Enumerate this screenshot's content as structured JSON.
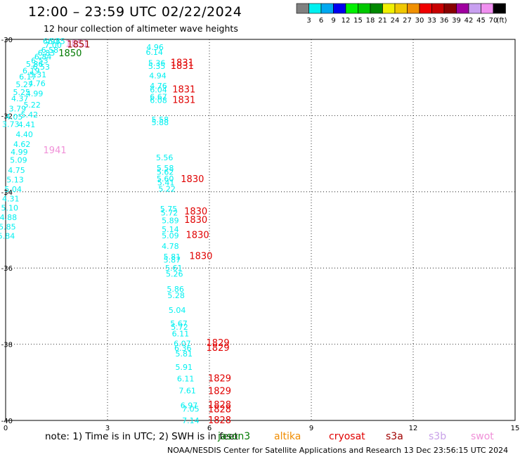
{
  "title": "12:00 – 23:59 UTC 02/22/2024",
  "subtitle": "12 hour collection of altimeter wave heights",
  "note": "note:  1) Time is in UTC; 2) SWH is in feet",
  "footer": "NOAA/NESDIS Center for Satellite Applications and Research    13 Dec 23:56:15 UTC 2024",
  "satellites": [
    {
      "name": "jason3",
      "color": "#007a00"
    },
    {
      "name": "altika",
      "color": "#f08c00"
    },
    {
      "name": "cryosat",
      "color": "#e00000"
    },
    {
      "name": "s3a",
      "color": "#a00000"
    },
    {
      "name": "s3b",
      "color": "#c8a0e8"
    },
    {
      "name": "swot",
      "color": "#f090d8"
    }
  ],
  "colorbar": {
    "labels": [
      "3",
      "6",
      "9",
      "12",
      "15",
      "18",
      "21",
      "24",
      "27",
      "30",
      "33",
      "36",
      "39",
      "42",
      "45",
      "70"
    ],
    "unit": "(ft)",
    "colors": [
      "#808080",
      "#00f0f0",
      "#00a8f0",
      "#0000f0",
      "#00f000",
      "#00c800",
      "#008800",
      "#f0f000",
      "#f0c800",
      "#f09000",
      "#f00000",
      "#c80000",
      "#880000",
      "#a000a0",
      "#c8a0f0",
      "#f090f0",
      "#000000"
    ]
  },
  "chart_data": {
    "type": "scatter",
    "title": "12:00 – 23:59 UTC 02/22/2024",
    "subtitle": "12 hour collection of altimeter wave heights",
    "xlim": [
      0,
      15
    ],
    "ylim": [
      -40,
      -30
    ],
    "x_ticks": [
      0,
      3,
      6,
      9,
      12,
      15
    ],
    "x_tick_labels": [
      "0",
      "3",
      "6",
      "9",
      "12",
      "15"
    ],
    "y_ticks": [
      -30,
      -32,
      -34,
      -36,
      -38,
      -40
    ],
    "y_tick_labels": [
      "-30",
      "-32",
      "-34",
      "-36",
      "-38",
      "-40"
    ],
    "grid": true,
    "swh_points": [
      {
        "x": 1.35,
        "y": -30.05,
        "v": "6.97"
      },
      {
        "x": 1.4,
        "y": -30.15,
        "v": "7.00"
      },
      {
        "x": 1.5,
        "y": -30.05,
        "v": "6.85"
      },
      {
        "x": 1.3,
        "y": -30.28,
        "v": "6.58"
      },
      {
        "x": 1.2,
        "y": -30.35,
        "v": "6.83"
      },
      {
        "x": 1.1,
        "y": -30.45,
        "v": "6.84"
      },
      {
        "x": 1.0,
        "y": -30.55,
        "v": "6.53"
      },
      {
        "x": 0.85,
        "y": -30.65,
        "v": "5.86"
      },
      {
        "x": 1.05,
        "y": -30.72,
        "v": "6.53"
      },
      {
        "x": 0.75,
        "y": -30.82,
        "v": "6.19"
      },
      {
        "x": 0.95,
        "y": -30.92,
        "v": "5.31"
      },
      {
        "x": 0.65,
        "y": -30.98,
        "v": "6.17"
      },
      {
        "x": 0.92,
        "y": -31.15,
        "v": "4.76"
      },
      {
        "x": 0.55,
        "y": -31.18,
        "v": "5.27"
      },
      {
        "x": 0.47,
        "y": -31.38,
        "v": "5.25"
      },
      {
        "x": 0.85,
        "y": -31.42,
        "v": "4.99"
      },
      {
        "x": 0.42,
        "y": -31.55,
        "v": "4.37"
      },
      {
        "x": 0.78,
        "y": -31.72,
        "v": "5.22"
      },
      {
        "x": 0.35,
        "y": -31.82,
        "v": "3.79"
      },
      {
        "x": 0.7,
        "y": -31.97,
        "v": "5.42"
      },
      {
        "x": 0.25,
        "y": -32.03,
        "v": "4.05"
      },
      {
        "x": 0.15,
        "y": -32.22,
        "v": "3.73"
      },
      {
        "x": 0.62,
        "y": -32.23,
        "v": "4.41"
      },
      {
        "x": 0.55,
        "y": -32.49,
        "v": "4.40"
      },
      {
        "x": 0.48,
        "y": -32.75,
        "v": "4.62"
      },
      {
        "x": 0.4,
        "y": -32.95,
        "v": "4.99"
      },
      {
        "x": 0.38,
        "y": -33.16,
        "v": "5.09"
      },
      {
        "x": 0.32,
        "y": -33.43,
        "v": "4.75"
      },
      {
        "x": 0.28,
        "y": -33.68,
        "v": "5.13"
      },
      {
        "x": 0.22,
        "y": -33.93,
        "v": "5.04"
      },
      {
        "x": 0.15,
        "y": -34.18,
        "v": "4.31"
      },
      {
        "x": 0.12,
        "y": -34.42,
        "v": "5.10"
      },
      {
        "x": 0.08,
        "y": -34.67,
        "v": "4.88"
      },
      {
        "x": 0.05,
        "y": -34.92,
        "v": "5.85"
      },
      {
        "x": 0.02,
        "y": -35.16,
        "v": "5.84"
      },
      {
        "x": 4.4,
        "y": -30.2,
        "v": "4.96"
      },
      {
        "x": 4.38,
        "y": -30.33,
        "v": "6.14"
      },
      {
        "x": 4.45,
        "y": -30.62,
        "v": "5.36"
      },
      {
        "x": 4.45,
        "y": -30.7,
        "v": "5.35"
      },
      {
        "x": 4.48,
        "y": -30.95,
        "v": "4.94"
      },
      {
        "x": 4.5,
        "y": -31.22,
        "v": "4.76"
      },
      {
        "x": 4.5,
        "y": -31.32,
        "v": "6.04"
      },
      {
        "x": 4.5,
        "y": -31.5,
        "v": "6.67"
      },
      {
        "x": 4.5,
        "y": -31.6,
        "v": "6.08"
      },
      {
        "x": 4.55,
        "y": -32.1,
        "v": "5.58"
      },
      {
        "x": 4.55,
        "y": -32.18,
        "v": "5.88"
      },
      {
        "x": 4.68,
        "y": -33.1,
        "v": "5.56"
      },
      {
        "x": 4.7,
        "y": -33.38,
        "v": "5.58"
      },
      {
        "x": 4.7,
        "y": -33.48,
        "v": "5.62"
      },
      {
        "x": 4.7,
        "y": -33.65,
        "v": "5.60"
      },
      {
        "x": 4.72,
        "y": -33.75,
        "v": "5.41"
      },
      {
        "x": 4.75,
        "y": -33.92,
        "v": "5.22"
      },
      {
        "x": 4.8,
        "y": -34.45,
        "v": "5.75"
      },
      {
        "x": 4.82,
        "y": -34.55,
        "v": "5.72"
      },
      {
        "x": 4.85,
        "y": -34.75,
        "v": "5.89"
      },
      {
        "x": 4.85,
        "y": -34.98,
        "v": "5.14"
      },
      {
        "x": 4.85,
        "y": -35.15,
        "v": "5.09"
      },
      {
        "x": 4.85,
        "y": -35.42,
        "v": "4.78"
      },
      {
        "x": 4.9,
        "y": -35.7,
        "v": "5.81"
      },
      {
        "x": 4.9,
        "y": -35.78,
        "v": "5.87"
      },
      {
        "x": 4.95,
        "y": -36.0,
        "v": "5.61"
      },
      {
        "x": 4.97,
        "y": -36.15,
        "v": "5.26"
      },
      {
        "x": 5.0,
        "y": -36.55,
        "v": "5.86"
      },
      {
        "x": 5.02,
        "y": -36.72,
        "v": "5.28"
      },
      {
        "x": 5.05,
        "y": -37.1,
        "v": "5.04"
      },
      {
        "x": 5.1,
        "y": -37.45,
        "v": "5.67"
      },
      {
        "x": 5.12,
        "y": -37.55,
        "v": "5.72"
      },
      {
        "x": 5.15,
        "y": -37.72,
        "v": "6.11"
      },
      {
        "x": 5.2,
        "y": -37.98,
        "v": "6.07"
      },
      {
        "x": 5.22,
        "y": -38.1,
        "v": "6.36"
      },
      {
        "x": 5.25,
        "y": -38.25,
        "v": "5.81"
      },
      {
        "x": 5.25,
        "y": -38.6,
        "v": "5.91"
      },
      {
        "x": 5.3,
        "y": -38.9,
        "v": "6.11"
      },
      {
        "x": 5.35,
        "y": -39.22,
        "v": "7.61"
      },
      {
        "x": 5.4,
        "y": -39.6,
        "v": "6.97"
      },
      {
        "x": 5.45,
        "y": -39.7,
        "v": "7.05"
      },
      {
        "x": 5.45,
        "y": -40.0,
        "v": "7.14"
      }
    ],
    "pass_times": [
      {
        "x": 2.1,
        "y": -30.1,
        "label": "1851",
        "series": "swot"
      },
      {
        "x": 2.15,
        "y": -30.12,
        "label": "1851",
        "series": "s3a"
      },
      {
        "x": 1.9,
        "y": -30.35,
        "label": "1850",
        "series": "jason3"
      },
      {
        "x": 1.45,
        "y": -32.9,
        "label": "1941",
        "series": "swot"
      },
      {
        "x": 5.2,
        "y": -30.6,
        "label": "1831",
        "series": "cryosat"
      },
      {
        "x": 5.2,
        "y": -30.68,
        "label": "1831",
        "series": "cryosat"
      },
      {
        "x": 5.25,
        "y": -31.3,
        "label": "1831",
        "series": "cryosat"
      },
      {
        "x": 5.25,
        "y": -31.58,
        "label": "1831",
        "series": "cryosat"
      },
      {
        "x": 5.5,
        "y": -33.65,
        "label": "1830",
        "series": "cryosat"
      },
      {
        "x": 5.6,
        "y": -34.5,
        "label": "1830",
        "series": "cryosat"
      },
      {
        "x": 5.6,
        "y": -34.72,
        "label": "1830",
        "series": "cryosat"
      },
      {
        "x": 5.65,
        "y": -35.12,
        "label": "1830",
        "series": "cryosat"
      },
      {
        "x": 5.75,
        "y": -35.67,
        "label": "1830",
        "series": "cryosat"
      },
      {
        "x": 6.25,
        "y": -37.95,
        "label": "1829",
        "series": "cryosat"
      },
      {
        "x": 6.25,
        "y": -38.08,
        "label": "1829",
        "series": "cryosat"
      },
      {
        "x": 6.3,
        "y": -38.88,
        "label": "1829",
        "series": "cryosat"
      },
      {
        "x": 6.3,
        "y": -39.22,
        "label": "1829",
        "series": "cryosat"
      },
      {
        "x": 6.3,
        "y": -39.58,
        "label": "1828",
        "series": "cryosat"
      },
      {
        "x": 6.3,
        "y": -39.7,
        "label": "1828",
        "series": "cryosat"
      },
      {
        "x": 6.3,
        "y": -39.98,
        "label": "1828",
        "series": "cryosat"
      }
    ]
  }
}
